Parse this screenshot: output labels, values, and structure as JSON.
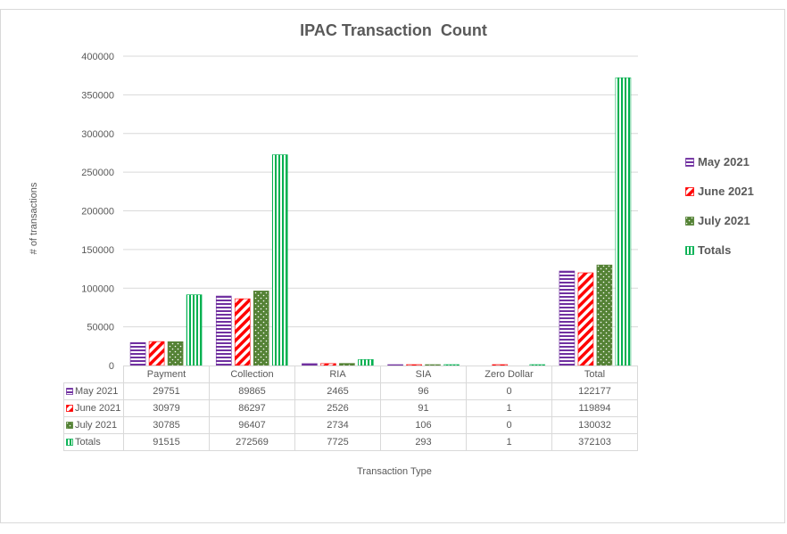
{
  "chart_data": {
    "type": "bar",
    "title": "IPAC Transaction  Count",
    "xlabel": "Transaction Type",
    "ylabel": "# of transactions",
    "ylim": [
      0,
      400000
    ],
    "yticks": [
      "0",
      "50000",
      "100000",
      "150000",
      "200000",
      "250000",
      "300000",
      "350000",
      "400000"
    ],
    "grid": true,
    "legend_position": "right",
    "categories": [
      "Payment",
      "Collection",
      "RIA",
      "SIA",
      "Zero Dollar",
      "Total"
    ],
    "series": [
      {
        "name": "May 2021",
        "values": [
          29751,
          89865,
          2465,
          96,
          0,
          122177
        ],
        "color": "#7030a0",
        "pattern": "horizontal-stripes"
      },
      {
        "name": "June 2021",
        "values": [
          30979,
          86297,
          2526,
          91,
          1,
          119894
        ],
        "color": "#ff0000",
        "pattern": "diagonal-stripes"
      },
      {
        "name": "July 2021",
        "values": [
          30785,
          96407,
          2734,
          106,
          0,
          130032
        ],
        "color": "#548235",
        "pattern": "dots"
      },
      {
        "name": "Totals",
        "values": [
          91515,
          272569,
          7725,
          293,
          1,
          372103
        ],
        "color": "#00b050",
        "pattern": "vertical-stripes"
      }
    ]
  },
  "table": {
    "rows": [
      {
        "label": "May 2021",
        "cells": [
          "29751",
          "89865",
          "2465",
          "96",
          "0",
          "122177"
        ]
      },
      {
        "label": "June 2021",
        "cells": [
          "30979",
          "86297",
          "2526",
          "91",
          "1",
          "119894"
        ]
      },
      {
        "label": "July 2021",
        "cells": [
          "30785",
          "96407",
          "2734",
          "106",
          "0",
          "130032"
        ]
      },
      {
        "label": "Totals",
        "cells": [
          "91515",
          "272569",
          "7725",
          "293",
          "1",
          "372103"
        ]
      }
    ]
  }
}
